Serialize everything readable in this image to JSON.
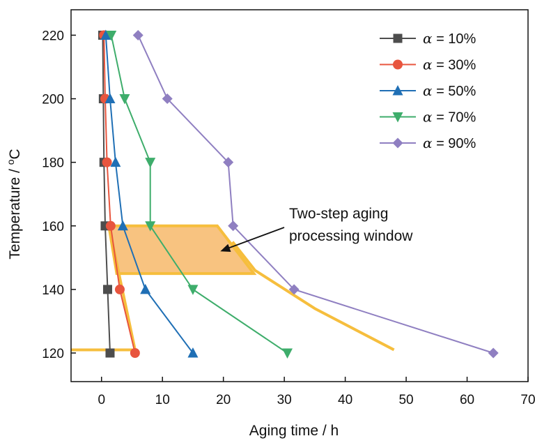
{
  "chart_data": {
    "type": "line",
    "xlabel": "Aging time / h",
    "ylabel_prefix": "Temperature / ",
    "ylabel_degree": "o",
    "ylabel_unit": "C",
    "xlim": [
      -5,
      70
    ],
    "ylim": [
      111,
      228
    ],
    "x_ticks": [
      0,
      10,
      20,
      30,
      40,
      50,
      60,
      70
    ],
    "y_ticks": [
      120,
      140,
      160,
      180,
      200,
      220
    ],
    "grid": false,
    "legend_position": "top-right",
    "series": [
      {
        "symbol": "α",
        "suffix": " = 10%",
        "color": "#4d4d4d",
        "marker": "square",
        "points": [
          [
            0.2,
            220
          ],
          [
            0.3,
            200
          ],
          [
            0.4,
            180
          ],
          [
            0.6,
            160
          ],
          [
            1.0,
            140
          ],
          [
            1.4,
            120
          ]
        ]
      },
      {
        "symbol": "α",
        "suffix": " = 30%",
        "color": "#e8553e",
        "marker": "circle",
        "points": [
          [
            0.4,
            220
          ],
          [
            0.6,
            200
          ],
          [
            0.9,
            180
          ],
          [
            1.5,
            160
          ],
          [
            3.0,
            140
          ],
          [
            5.5,
            120
          ]
        ]
      },
      {
        "symbol": "α",
        "suffix": " = 50%",
        "color": "#1f6fb5",
        "marker": "triangle-up",
        "points": [
          [
            0.7,
            220
          ],
          [
            1.4,
            200
          ],
          [
            2.3,
            180
          ],
          [
            3.5,
            160
          ],
          [
            7.2,
            140
          ],
          [
            15.0,
            120
          ]
        ]
      },
      {
        "symbol": "α",
        "suffix": " = 70%",
        "color": "#3ead6b",
        "marker": "triangle-down",
        "points": [
          [
            1.6,
            220
          ],
          [
            3.8,
            200
          ],
          [
            8.0,
            180
          ],
          [
            8.0,
            160
          ],
          [
            15.0,
            140
          ],
          [
            30.5,
            120
          ]
        ]
      },
      {
        "symbol": "α",
        "suffix": " = 90%",
        "color": "#8f7fc1",
        "marker": "diamond",
        "points": [
          [
            6.0,
            220
          ],
          [
            10.8,
            200
          ],
          [
            20.8,
            180
          ],
          [
            21.6,
            160
          ],
          [
            31.6,
            140
          ],
          [
            64.3,
            120
          ]
        ]
      }
    ],
    "window_region": {
      "fill": "#f7b86a",
      "stroke": "#f6be3d",
      "polygon": [
        [
          1.2,
          160
        ],
        [
          19.0,
          160
        ],
        [
          25.0,
          145
        ],
        [
          2.5,
          145
        ]
      ]
    },
    "window_boundary_lines": [
      {
        "color": "#f6be3d",
        "points": [
          [
            -5,
            121
          ],
          [
            5.5,
            121
          ]
        ]
      },
      {
        "color": "#f6be3d",
        "points": [
          [
            1.2,
            160
          ],
          [
            5.5,
            121
          ]
        ]
      },
      {
        "color": "#f6be3d",
        "points": [
          [
            21.5,
            155
          ],
          [
            25.2,
            146
          ],
          [
            35,
            134
          ],
          [
            48,
            121
          ]
        ]
      }
    ],
    "annotation": {
      "lines": [
        "Two-step aging",
        "processing window"
      ],
      "arrow_to": [
        19.5,
        152
      ]
    }
  }
}
